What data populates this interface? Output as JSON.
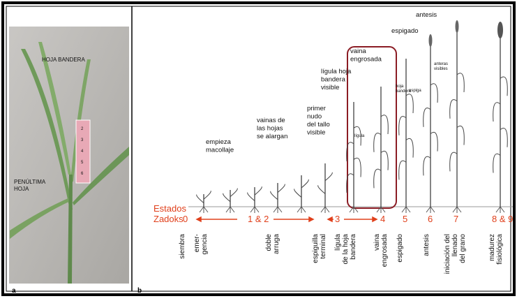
{
  "panel_a": {
    "label": "a",
    "flag_leaf": "HOJA BANDERA",
    "penultimate_leaf": [
      "PENÚLTIMA",
      "HOJA"
    ],
    "ruler_marks": [
      "2",
      "3",
      "4",
      "5",
      "6"
    ]
  },
  "panel_b": {
    "label": "b",
    "zadoks_label": [
      "Estados",
      "Zadoks"
    ],
    "top_labels": [
      [
        "empieza",
        "macollaje"
      ],
      [
        "vainas de",
        "las hojas",
        "se alargan"
      ],
      [
        "primer",
        "nudo",
        "del tallo",
        "visible"
      ],
      [
        "lígula hoja",
        "bandera",
        "visible"
      ],
      [
        "vaina",
        "engrosada"
      ],
      [
        "espigado"
      ],
      [
        "antesis"
      ]
    ],
    "annotations": [
      "lígula",
      "hoja",
      "bandera",
      "espiga",
      "anteras",
      "visibles"
    ],
    "stages": [
      "0",
      "1 & 2",
      "3",
      "4",
      "5",
      "6",
      "7",
      "8 & 9"
    ],
    "bottom_labels": [
      [
        "siembra"
      ],
      [
        "emer-",
        "gencia"
      ],
      [
        "doble",
        "arruga"
      ],
      [
        "espiguilla",
        "terminal"
      ],
      [
        "lígula",
        "de la hoja",
        "bandera"
      ],
      [
        "vaina",
        "engrosada"
      ],
      [
        "espigado"
      ],
      [
        "antesis"
      ],
      [
        "iniciación del",
        "llenado",
        "del grano"
      ],
      [
        "madurez",
        "fisiológica"
      ]
    ]
  }
}
